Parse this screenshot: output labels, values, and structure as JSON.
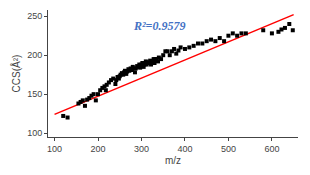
{
  "chart_data": {
    "type": "scatter",
    "xlabel": "m/z",
    "ylabel": "CCS(Å²)",
    "xlim": [
      85,
      660
    ],
    "ylim": [
      95,
      258
    ],
    "xticks": [
      100,
      200,
      300,
      400,
      500,
      600
    ],
    "yticks": [
      100,
      150,
      200,
      250
    ],
    "grid": false,
    "series": [
      {
        "type": "scatter",
        "color": "black",
        "marker": "square",
        "x": [
          120,
          130,
          155,
          160,
          165,
          170,
          175,
          180,
          185,
          190,
          195,
          200,
          205,
          210,
          215,
          218,
          220,
          225,
          230,
          235,
          240,
          242,
          245,
          248,
          250,
          252,
          255,
          258,
          260,
          262,
          265,
          267,
          270,
          272,
          275,
          278,
          280,
          282,
          285,
          287,
          290,
          292,
          295,
          297,
          300,
          302,
          305,
          307,
          310,
          312,
          315,
          318,
          320,
          322,
          325,
          328,
          330,
          332,
          335,
          338,
          340,
          345,
          350,
          355,
          360,
          365,
          370,
          375,
          380,
          385,
          390,
          400,
          410,
          420,
          430,
          440,
          450,
          460,
          470,
          480,
          490,
          500,
          510,
          520,
          530,
          540,
          580,
          600,
          615,
          622,
          630,
          640,
          648
        ],
        "values": [
          122,
          120,
          138,
          140,
          142,
          135,
          143,
          145,
          148,
          150,
          142,
          150,
          155,
          158,
          160,
          155,
          162,
          165,
          168,
          170,
          163,
          168,
          172,
          170,
          173,
          175,
          177,
          175,
          178,
          180,
          176,
          179,
          182,
          180,
          183,
          181,
          185,
          183,
          178,
          183,
          186,
          185,
          188,
          184,
          188,
          190,
          185,
          188,
          192,
          188,
          191,
          190,
          193,
          188,
          192,
          195,
          190,
          195,
          195,
          192,
          197,
          195,
          200,
          205,
          205,
          200,
          205,
          208,
          202,
          206,
          210,
          208,
          210,
          212,
          215,
          215,
          218,
          220,
          218,
          222,
          218,
          225,
          228,
          225,
          228,
          228,
          232,
          228,
          230,
          233,
          235,
          240,
          232
        ]
      },
      {
        "type": "line",
        "color": "red",
        "line_style": "solid",
        "x": [
          100,
          650
        ],
        "values": [
          124,
          252
        ]
      }
    ],
    "annotations": [
      {
        "text": "R²=0.9579",
        "color": "#4472C4"
      }
    ]
  }
}
